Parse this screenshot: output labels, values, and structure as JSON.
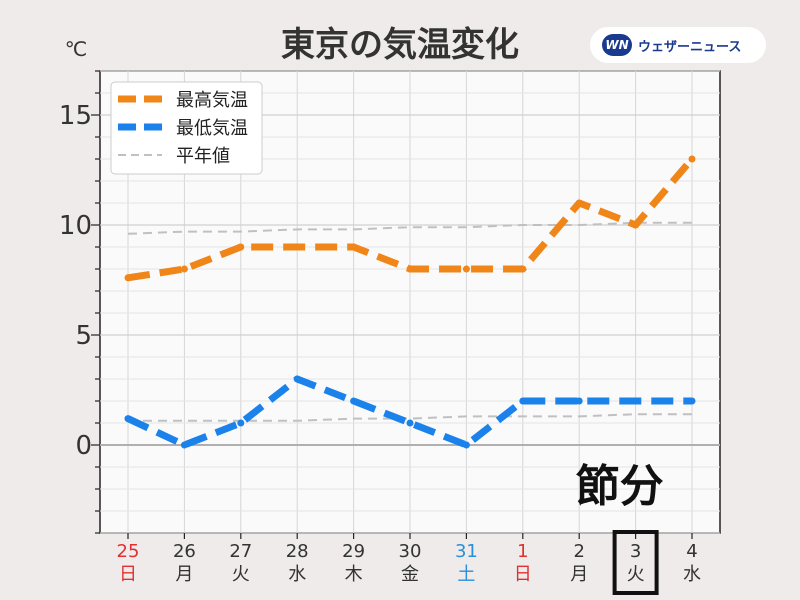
{
  "chart_data": {
    "type": "line",
    "title": "東京の気温変化",
    "ylabel": "℃",
    "ylim": [
      -4,
      17
    ],
    "y_ticks": [
      0,
      5,
      10,
      15
    ],
    "categories": [
      {
        "day": "25",
        "weekday": "日",
        "color": "#e03030"
      },
      {
        "day": "26",
        "weekday": "月",
        "color": "#333333"
      },
      {
        "day": "27",
        "weekday": "火",
        "color": "#333333"
      },
      {
        "day": "28",
        "weekday": "水",
        "color": "#333333"
      },
      {
        "day": "29",
        "weekday": "木",
        "color": "#333333"
      },
      {
        "day": "30",
        "weekday": "金",
        "color": "#333333"
      },
      {
        "day": "31",
        "weekday": "土",
        "color": "#2a8fd8"
      },
      {
        "day": "1",
        "weekday": "日",
        "color": "#e03030"
      },
      {
        "day": "2",
        "weekday": "月",
        "color": "#333333"
      },
      {
        "day": "3",
        "weekday": "火",
        "color": "#333333"
      },
      {
        "day": "4",
        "weekday": "水",
        "color": "#333333"
      }
    ],
    "series": [
      {
        "name": "最高気温",
        "color": "#f08518",
        "style": "dashed-thick",
        "values": [
          7.6,
          8.0,
          9.0,
          9.0,
          9.0,
          8.0,
          8.0,
          8.0,
          11.0,
          10.0,
          13.0
        ]
      },
      {
        "name": "最低気温",
        "color": "#1a82ea",
        "style": "dashed-thick",
        "values": [
          1.2,
          0.0,
          1.0,
          3.0,
          2.0,
          1.0,
          0.0,
          2.0,
          2.0,
          2.0,
          2.0
        ]
      },
      {
        "name": "平年値",
        "color": "#c0c0c0",
        "style": "dashed-thin",
        "values": [
          9.6,
          9.7,
          9.7,
          9.8,
          9.8,
          9.9,
          9.9,
          10.0,
          10.0,
          10.1,
          10.1
        ]
      },
      {
        "name": "平年値",
        "color": "#c0c0c0",
        "style": "dashed-thin",
        "in_legend": false,
        "values": [
          1.1,
          1.1,
          1.1,
          1.1,
          1.2,
          1.2,
          1.3,
          1.3,
          1.3,
          1.4,
          1.4
        ]
      }
    ],
    "annotation": {
      "text": "節分",
      "category_index": 9
    },
    "highlight_index": 9,
    "grid": true,
    "legend_position": "top-left"
  },
  "brand": {
    "mark": "WN",
    "name": "ウェザーニュース",
    "color": "#1a3a8f"
  }
}
